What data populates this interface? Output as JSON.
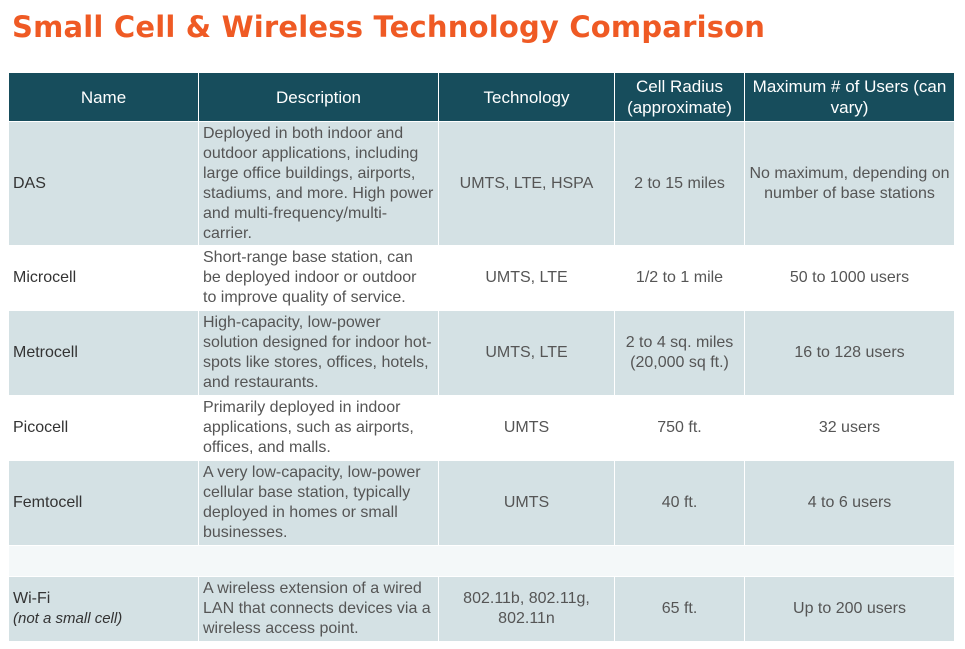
{
  "title": "Small Cell & Wireless Technology Comparison",
  "colors": {
    "title": "#ef5a24",
    "header_bg": "#174d5c",
    "row_shade": "#d4e1e4"
  },
  "headers": {
    "name": "Name",
    "description": "Description",
    "technology": "Technology",
    "radius": "Cell Radius (approximate)",
    "users": "Maximum # of Users (can vary)"
  },
  "rows": [
    {
      "name": "DAS",
      "description": "Deployed in both indoor and outdoor applications, including large office buildings, airports, stadiums, and more. High power and multi-frequency/multi-carrier.",
      "technology": "UMTS, LTE, HSPA",
      "radius": "2 to 15 miles",
      "users": "No maximum, depending on number of base stations"
    },
    {
      "name": "Microcell",
      "description": "Short-range base station, can be deployed indoor or outdoor to improve quality of service.",
      "technology": "UMTS, LTE",
      "radius": "1/2 to 1 mile",
      "users": "50 to 1000 users"
    },
    {
      "name": "Metrocell",
      "description": "High-capacity, low-power solution designed for indoor hot-spots like stores, offices, hotels, and restaurants.",
      "technology": "UMTS, LTE",
      "radius": "2 to 4 sq. miles (20,000 sq ft.)",
      "users": "16 to 128 users"
    },
    {
      "name": "Picocell",
      "description": "Primarily deployed in indoor applications, such as airports, offices, and malls.",
      "technology": "UMTS",
      "radius": "750 ft.",
      "users": "32 users"
    },
    {
      "name": "Femtocell",
      "description": "A very low-capacity, low-power cellular base station, typically deployed in homes or small businesses.",
      "technology": "UMTS",
      "radius": "40 ft.",
      "users": "4 to 6 users"
    }
  ],
  "wifi_row": {
    "name": "Wi-Fi",
    "note": "(not a small cell)",
    "description": "A wireless extension of a wired LAN that connects devices via a wireless access point.",
    "technology": "802.11b, 802.11g, 802.11n",
    "radius": "65 ft.",
    "users": "Up to 200 users"
  }
}
